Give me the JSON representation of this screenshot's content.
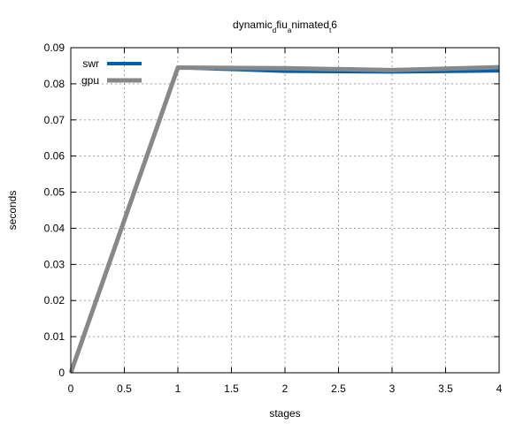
{
  "chart_data": {
    "type": "line",
    "title_parts": [
      {
        "text": "dynamic",
        "sub": false
      },
      {
        "text": "d",
        "sub": true
      },
      {
        "text": "fiu",
        "sub": false
      },
      {
        "text": "a",
        "sub": true
      },
      {
        "text": "nimated",
        "sub": false
      },
      {
        "text": "t",
        "sub": true
      },
      {
        "text": "6",
        "sub": false
      }
    ],
    "xlabel": "stages",
    "ylabel": "seconds",
    "xlim": [
      0,
      4
    ],
    "ylim": [
      0,
      0.09
    ],
    "x_ticks": [
      "0",
      "0.5",
      "1",
      "1.5",
      "2",
      "2.5",
      "3",
      "3.5",
      "4"
    ],
    "y_ticks": [
      "0",
      "0.01",
      "0.02",
      "0.03",
      "0.04",
      "0.05",
      "0.06",
      "0.07",
      "0.08",
      "0.09"
    ],
    "grid": true,
    "legend_position": "top-left",
    "series": [
      {
        "name": "swr",
        "color": "#0060ad",
        "x": [
          0,
          1,
          2,
          3,
          4
        ],
        "y": [
          0,
          0.0845,
          0.0835,
          0.0833,
          0.0836
        ]
      },
      {
        "name": "gpu",
        "color": "#888888",
        "x": [
          0,
          1,
          2,
          3,
          4
        ],
        "y": [
          0,
          0.0845,
          0.0843,
          0.0838,
          0.0846
        ]
      }
    ]
  }
}
